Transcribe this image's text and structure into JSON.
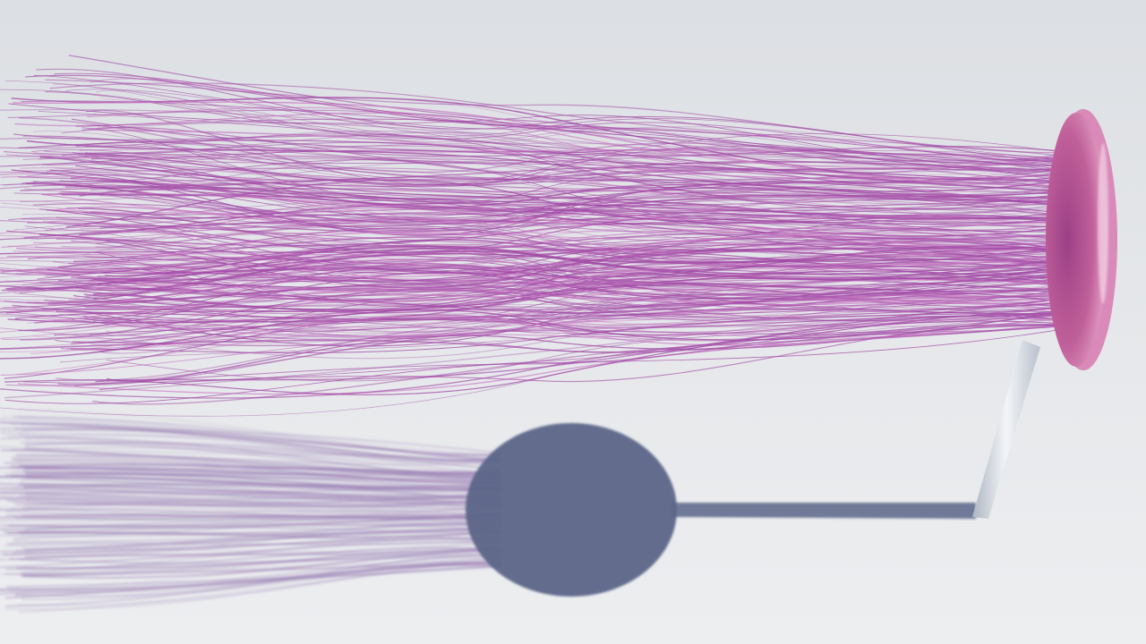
{
  "scene": {
    "background_color": "#e4e6e9",
    "floor_color": "#e9ebee",
    "hair_color": "#a24aa6",
    "hair_highlight_color": "#c978c4",
    "disc_color": "#c0609a",
    "disc_rim_color": "#e8a8cc",
    "stand_color": "#cfd4dc",
    "shadow_color": "#5c6688",
    "hair_shadow_color": "#8a6aa8"
  }
}
